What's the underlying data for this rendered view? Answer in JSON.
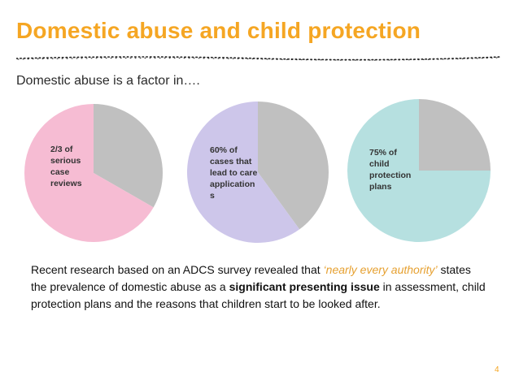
{
  "slide": {
    "title": "Domestic abuse and child protection",
    "subtitle": "Domestic abuse is a factor in….",
    "page_number": "4"
  },
  "body": {
    "part1": "Recent research based on an ADCS survey revealed that ",
    "quote": "‘nearly every authority’",
    "part2": " states the prevalence of domestic abuse as a ",
    "bold": "significant presenting issue",
    "part3": " in assessment, child protection plans and the reasons that children start to be looked after."
  },
  "colors": {
    "title": "#f5a623",
    "remainder": "#c0c0c0",
    "pie1": "#f6bcd3",
    "pie2": "#cdc6ea",
    "pie3": "#b6e0e0",
    "divider": "#222222"
  },
  "chart_data": [
    {
      "type": "pie",
      "label": "2/3 of\nserious\ncase\nreviews",
      "slices": [
        {
          "value": 66.7,
          "color": "#f6bcd3"
        },
        {
          "value": 33.3,
          "color": "#c0c0c0"
        }
      ]
    },
    {
      "type": "pie",
      "label": "60% of\ncases that\nlead to care\napplication\ns",
      "slices": [
        {
          "value": 60,
          "color": "#cdc6ea"
        },
        {
          "value": 40,
          "color": "#c0c0c0"
        }
      ]
    },
    {
      "type": "pie",
      "label": "75% of\nchild\nprotection\nplans",
      "slices": [
        {
          "value": 75,
          "color": "#b6e0e0"
        },
        {
          "value": 25,
          "color": "#c0c0c0"
        }
      ]
    }
  ]
}
